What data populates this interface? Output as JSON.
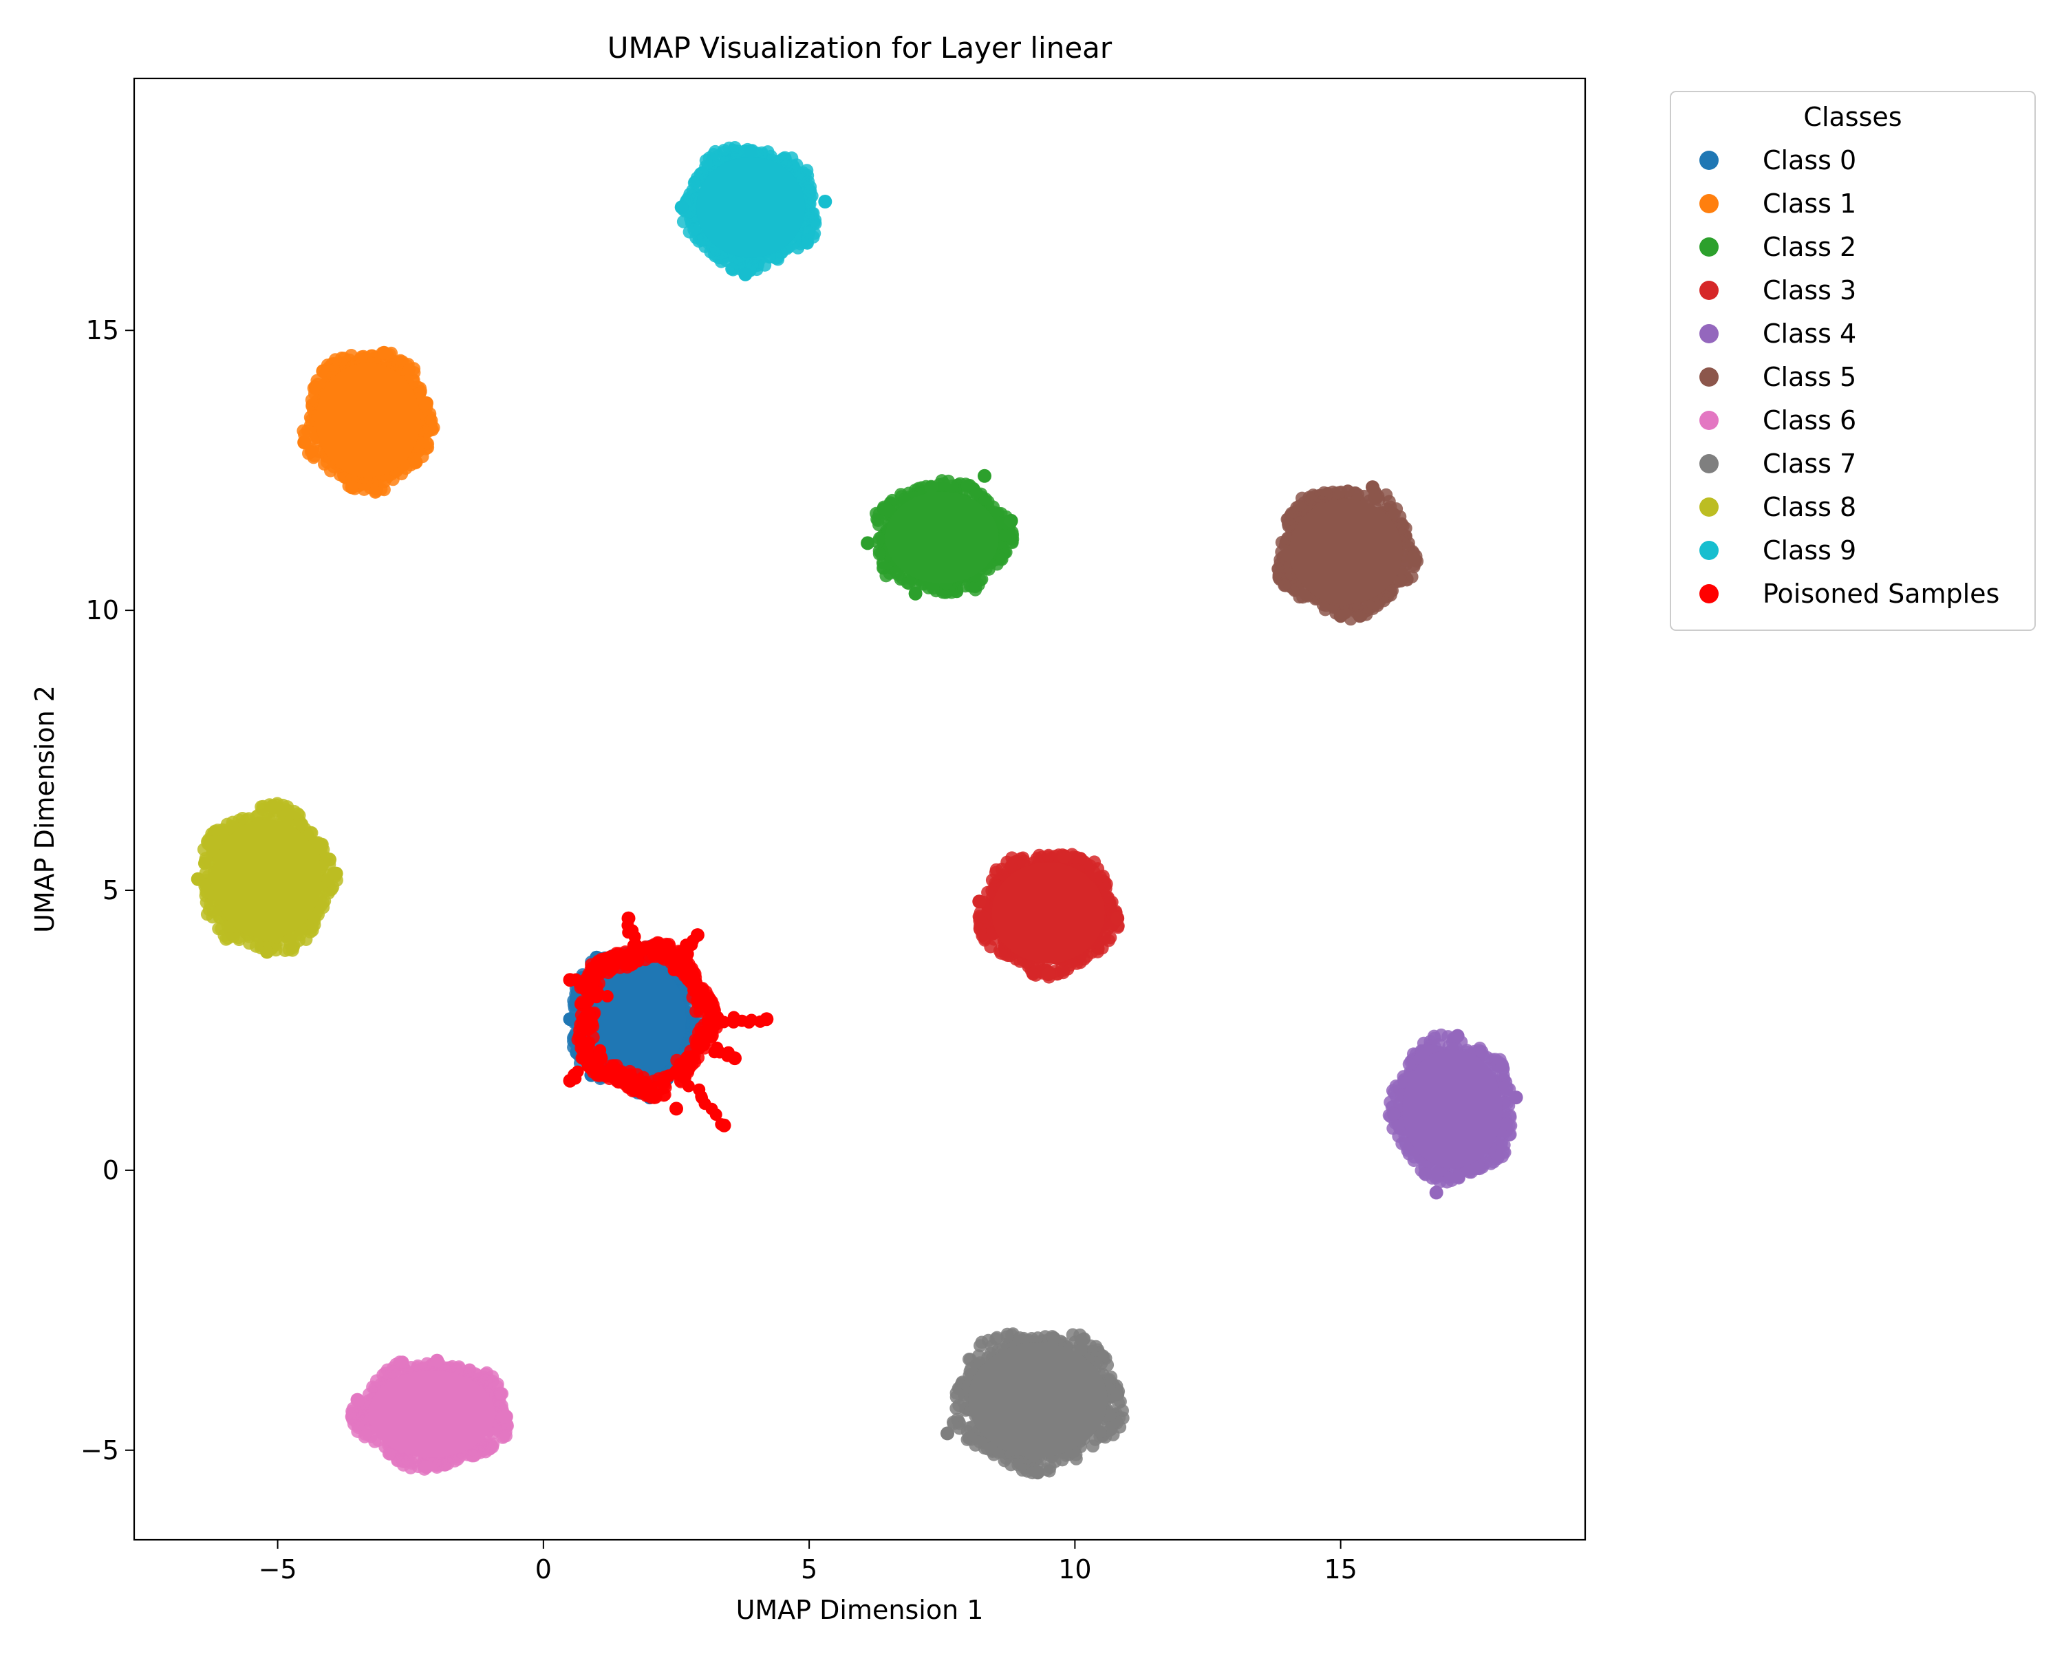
{
  "chart_data": {
    "type": "scatter",
    "title": "UMAP Visualization for Layer linear",
    "xlabel": "UMAP Dimension 1",
    "ylabel": "UMAP Dimension 2",
    "xlim": [
      -7.7,
      19.6
    ],
    "ylim": [
      -6.6,
      19.5
    ],
    "xticks": [
      -5,
      0,
      5,
      10,
      15
    ],
    "yticks": [
      -5,
      0,
      5,
      10,
      15
    ],
    "grid": false,
    "legend": {
      "title": "Classes",
      "placement": "outside-top-right"
    },
    "series": [
      {
        "name": "Class 0",
        "color": "#1f77b4",
        "center": [
          1.7,
          2.7
        ],
        "spread": [
          1.2,
          1.3
        ],
        "points": [
          [
            0.5,
            2.7
          ],
          [
            1.0,
            3.8
          ],
          [
            2.5,
            3.6
          ],
          [
            2.9,
            2.4
          ],
          [
            2.0,
            1.3
          ],
          [
            0.9,
            1.7
          ]
        ]
      },
      {
        "name": "Class 1",
        "color": "#ff7f0e",
        "center": [
          -3.3,
          13.4
        ],
        "spread": [
          1.2,
          1.25
        ],
        "points": [
          [
            -4.5,
            13.0
          ],
          [
            -3.0,
            14.6
          ],
          [
            -2.2,
            13.7
          ],
          [
            -3.6,
            12.2
          ]
        ]
      },
      {
        "name": "Class 2",
        "color": "#2ca02c",
        "center": [
          7.5,
          11.3
        ],
        "spread": [
          1.3,
          1.0
        ],
        "points": [
          [
            6.1,
            11.2
          ],
          [
            7.3,
            12.2
          ],
          [
            8.8,
            11.6
          ],
          [
            7.0,
            10.3
          ],
          [
            8.3,
            12.4
          ]
        ]
      },
      {
        "name": "Class 3",
        "color": "#d62728",
        "center": [
          9.5,
          4.6
        ],
        "spread": [
          1.3,
          1.1
        ],
        "points": [
          [
            8.2,
            4.8
          ],
          [
            9.8,
            5.6
          ],
          [
            10.8,
            4.5
          ],
          [
            9.5,
            3.5
          ]
        ]
      },
      {
        "name": "Class 4",
        "color": "#9467bd",
        "center": [
          17.1,
          1.1
        ],
        "spread": [
          1.15,
          1.3
        ],
        "points": [
          [
            16.0,
            1.0
          ],
          [
            17.2,
            2.4
          ],
          [
            18.3,
            1.3
          ],
          [
            16.8,
            -0.4
          ]
        ]
      },
      {
        "name": "Class 5",
        "color": "#8c564b",
        "center": [
          15.1,
          11.05
        ],
        "spread": [
          1.3,
          1.15
        ],
        "points": [
          [
            14.0,
            11.0
          ],
          [
            15.6,
            12.2
          ],
          [
            16.4,
            10.9
          ],
          [
            15.0,
            9.9
          ]
        ]
      },
      {
        "name": "Class 6",
        "color": "#e377c2",
        "center": [
          -2.1,
          -4.35
        ],
        "spread": [
          1.45,
          0.95
        ],
        "points": [
          [
            -3.5,
            -4.1
          ],
          [
            -2.0,
            -3.4
          ],
          [
            -0.7,
            -4.4
          ],
          [
            -2.2,
            -5.3
          ]
        ]
      },
      {
        "name": "Class 7",
        "color": "#7f7f7f",
        "center": [
          9.3,
          -4.1
        ],
        "spread": [
          1.6,
          1.25
        ],
        "points": [
          [
            7.6,
            -4.7
          ],
          [
            9.6,
            -3.0
          ],
          [
            10.8,
            -4.0
          ],
          [
            9.3,
            -5.4
          ]
        ]
      },
      {
        "name": "Class 8",
        "color": "#bcbd22",
        "center": [
          -5.2,
          5.2
        ],
        "spread": [
          1.25,
          1.3
        ],
        "points": [
          [
            -6.5,
            5.2
          ],
          [
            -5.1,
            6.5
          ],
          [
            -3.9,
            5.3
          ],
          [
            -5.2,
            3.9
          ]
        ]
      },
      {
        "name": "Class 9",
        "color": "#17becf",
        "center": [
          3.9,
          17.2
        ],
        "spread": [
          1.25,
          1.1
        ],
        "points": [
          [
            2.6,
            17.2
          ],
          [
            3.9,
            18.2
          ],
          [
            5.3,
            17.3
          ],
          [
            3.8,
            16.0
          ]
        ]
      },
      {
        "name": "Poisoned Samples",
        "color": "#ff0000",
        "center": [
          1.9,
          2.7
        ],
        "spread": [
          1.3,
          1.35
        ],
        "points": [
          [
            0.5,
            1.6
          ],
          [
            0.5,
            3.4
          ],
          [
            1.6,
            4.5
          ],
          [
            2.9,
            4.2
          ],
          [
            4.2,
            2.7
          ],
          [
            3.6,
            2.0
          ],
          [
            3.4,
            0.8
          ],
          [
            2.5,
            1.1
          ]
        ]
      }
    ]
  }
}
